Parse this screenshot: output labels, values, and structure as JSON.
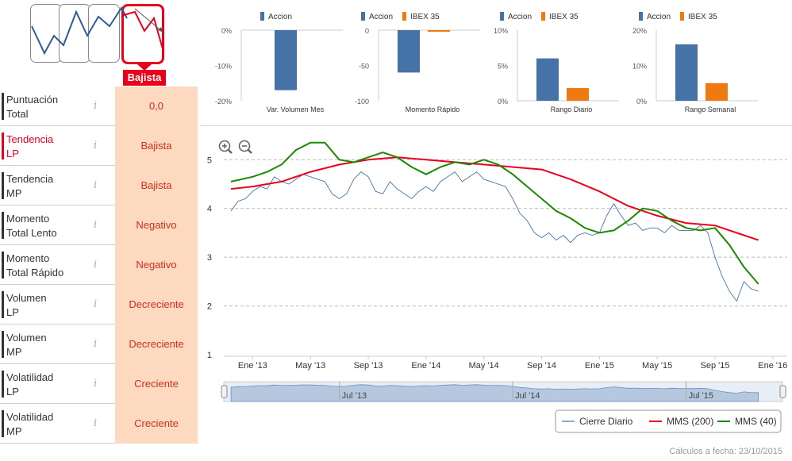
{
  "trend": {
    "selected_label": "Bajista"
  },
  "indicators": [
    {
      "label": "Puntuación\nTotal",
      "value": "0,0",
      "active": false
    },
    {
      "label": "Tendencia\nLP",
      "value": "Bajista",
      "active": true
    },
    {
      "label": "Tendencia\nMP",
      "value": "Bajista",
      "active": false
    },
    {
      "label": "Momento\nTotal Lento",
      "value": "Negativo",
      "active": false
    },
    {
      "label": "Momento\nTotal Rápido",
      "value": "Negativo",
      "active": false
    },
    {
      "label": "Volumen\nLP",
      "value": "Decreciente",
      "active": false
    },
    {
      "label": "Volumen\nMP",
      "value": "Decreciente",
      "active": false
    },
    {
      "label": "Volatilidad\nLP",
      "value": "Creciente",
      "active": false
    },
    {
      "label": "Volatilidad\nMP",
      "value": "Creciente",
      "active": false
    }
  ],
  "info_glyph": "i",
  "colors": {
    "accion": "#4572a7",
    "ibex": "#ef7a10",
    "cierre": "#4572a7",
    "mms200": "#e8001c",
    "mms40": "#1a8a00",
    "accent": "#e8001c",
    "cell_bg": "#fdd9bf"
  },
  "chart_data": [
    {
      "type": "bar",
      "title": "Var. Volumen Mes",
      "categories": [
        "Var. Volumen Mes"
      ],
      "series": [
        {
          "name": "Accion",
          "values": [
            -17
          ]
        }
      ],
      "ylim": [
        -20,
        0
      ],
      "ticks": [
        "0%",
        "-10%",
        "-20%"
      ],
      "tick_values": [
        0,
        -10,
        -20
      ]
    },
    {
      "type": "bar",
      "title": "Momento Rápido",
      "categories": [
        "Momento Rápido"
      ],
      "series": [
        {
          "name": "Accion",
          "values": [
            -60
          ]
        },
        {
          "name": "IBEX 35",
          "values": [
            -2
          ]
        }
      ],
      "ylim": [
        -100,
        0
      ],
      "ticks": [
        "0",
        "-50",
        "-100"
      ],
      "tick_values": [
        0,
        -50,
        -100
      ]
    },
    {
      "type": "bar",
      "title": "Rango Diario",
      "categories": [
        "Rango Diario"
      ],
      "series": [
        {
          "name": "Accion",
          "values": [
            6
          ]
        },
        {
          "name": "IBEX 35",
          "values": [
            1.8
          ]
        }
      ],
      "ylim": [
        0,
        10
      ],
      "ticks": [
        "10%",
        "5%",
        "0%"
      ],
      "tick_values": [
        10,
        5,
        0
      ]
    },
    {
      "type": "bar",
      "title": "Rango Semanal",
      "categories": [
        "Rango Semanal"
      ],
      "series": [
        {
          "name": "Accion",
          "values": [
            16
          ]
        },
        {
          "name": "IBEX 35",
          "values": [
            5
          ]
        }
      ],
      "ylim": [
        0,
        20
      ],
      "ticks": [
        "20%",
        "10%",
        "0%"
      ],
      "tick_values": [
        20,
        10,
        0
      ]
    },
    {
      "type": "line",
      "title": "",
      "x_ticks": [
        "Ene '13",
        "May '13",
        "Sep '13",
        "Ene '14",
        "May '14",
        "Sep '14",
        "Ene '15",
        "May '15",
        "Sep '15",
        "Ene '16"
      ],
      "y_ticks": [
        "5",
        "4",
        "3",
        "2",
        "1"
      ],
      "ylim": [
        1,
        5.2
      ],
      "navigator_labels": [
        "Jul '13",
        "Jul '14",
        "Jul '15"
      ],
      "legend": [
        "Cierre Diario",
        "MMS (200)",
        "MMS (40)"
      ],
      "x_months": [
        0,
        4,
        8,
        12,
        16,
        20,
        24,
        28,
        32,
        36
      ],
      "series": [
        {
          "name": "Cierre Diario",
          "x": [
            -1.5,
            -1,
            -0.5,
            0,
            0.5,
            1,
            1.5,
            2,
            2.5,
            3,
            3.5,
            4,
            4.5,
            5,
            5.5,
            6,
            6.5,
            7,
            7.5,
            8,
            8.5,
            9,
            9.5,
            10,
            10.5,
            11,
            11.5,
            12,
            12.5,
            13,
            13.5,
            14,
            14.5,
            15,
            15.5,
            16,
            16.5,
            17,
            17.5,
            18,
            18.5,
            19,
            19.5,
            20,
            20.5,
            21,
            21.5,
            22,
            22.5,
            23,
            23.5,
            24,
            24.5,
            25,
            25.5,
            26,
            26.5,
            27,
            27.5,
            28,
            28.5,
            29,
            29.5,
            30,
            30.5,
            31,
            31.5,
            32,
            32.5,
            33,
            33.5,
            34,
            34.5,
            35
          ],
          "values": [
            3.95,
            4.15,
            4.2,
            4.35,
            4.45,
            4.4,
            4.65,
            4.55,
            4.5,
            4.6,
            4.7,
            4.65,
            4.6,
            4.55,
            4.3,
            4.2,
            4.3,
            4.6,
            4.75,
            4.65,
            4.35,
            4.3,
            4.55,
            4.4,
            4.3,
            4.2,
            4.35,
            4.45,
            4.35,
            4.55,
            4.65,
            4.75,
            4.55,
            4.65,
            4.75,
            4.6,
            4.55,
            4.5,
            4.45,
            4.2,
            3.9,
            3.75,
            3.5,
            3.4,
            3.5,
            3.35,
            3.45,
            3.3,
            3.45,
            3.5,
            3.45,
            3.5,
            3.85,
            4.1,
            3.85,
            3.65,
            3.7,
            3.55,
            3.6,
            3.6,
            3.5,
            3.65,
            3.55,
            3.55,
            3.55,
            3.65,
            3.5,
            3.0,
            2.6,
            2.3,
            2.1,
            2.5,
            2.35,
            2.3
          ]
        },
        {
          "name": "MMS (200)",
          "x": [
            -1.5,
            0,
            2,
            4,
            6,
            8,
            10,
            12,
            14,
            16,
            18,
            20,
            22,
            24,
            26,
            28,
            30,
            32,
            34,
            35
          ],
          "values": [
            4.4,
            4.45,
            4.55,
            4.75,
            4.9,
            5.0,
            5.05,
            5.0,
            4.95,
            4.9,
            4.85,
            4.8,
            4.6,
            4.35,
            4.05,
            3.85,
            3.7,
            3.65,
            3.45,
            3.35
          ]
        },
        {
          "name": "MMS (40)",
          "x": [
            -1.5,
            0,
            1,
            2,
            3,
            4,
            5,
            6,
            7,
            8,
            9,
            10,
            11,
            12,
            13,
            14,
            15,
            16,
            17,
            18,
            19,
            20,
            21,
            22,
            23,
            24,
            25,
            26,
            27,
            28,
            29,
            30,
            31,
            32,
            33,
            34,
            35
          ],
          "values": [
            4.55,
            4.65,
            4.75,
            4.9,
            5.2,
            5.35,
            5.35,
            5.0,
            4.95,
            5.05,
            5.15,
            5.05,
            4.85,
            4.7,
            4.85,
            4.95,
            4.9,
            5.0,
            4.9,
            4.7,
            4.45,
            4.2,
            3.95,
            3.8,
            3.6,
            3.5,
            3.55,
            3.75,
            4.0,
            3.95,
            3.75,
            3.6,
            3.55,
            3.6,
            3.25,
            2.8,
            2.45
          ]
        }
      ]
    }
  ],
  "footer": {
    "text": "Cálculos a fecha: 23/10/2015"
  }
}
